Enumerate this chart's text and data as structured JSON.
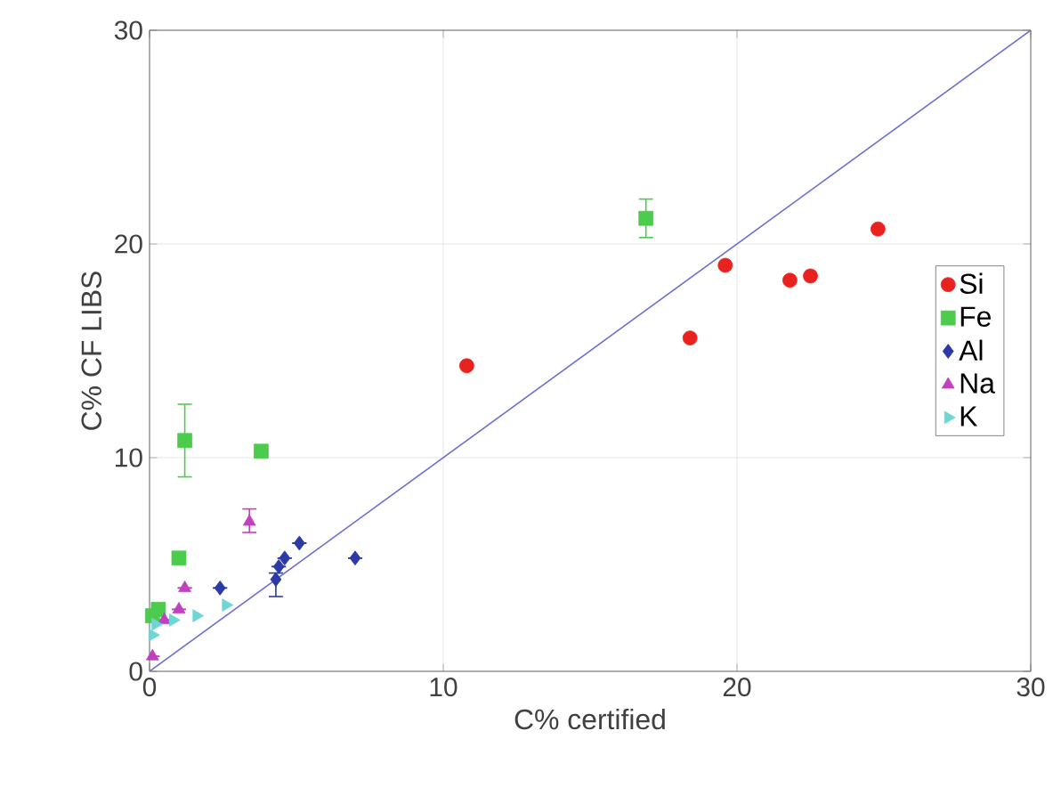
{
  "chart_data": {
    "type": "scatter",
    "xlabel": "C% certified",
    "ylabel": "C% CF LIBS",
    "xlim": [
      0,
      30
    ],
    "ylim": [
      0,
      30
    ],
    "xticks": [
      0,
      10,
      20,
      30
    ],
    "yticks": [
      0,
      10,
      20,
      30
    ],
    "grid": true,
    "legend": "right",
    "series": [
      {
        "name": "Si",
        "color": "#e8231f",
        "marker": "circle",
        "x": [
          10.8,
          18.4,
          19.6,
          21.8,
          22.5,
          24.8
        ],
        "values": [
          14.3,
          15.6,
          19.0,
          18.3,
          18.5,
          20.7
        ]
      },
      {
        "name": "Fe",
        "color": "#4ccc4c",
        "marker": "square",
        "x": [
          16.9,
          1.2,
          3.8,
          1.0,
          0.3,
          0.1
        ],
        "values": [
          21.2,
          10.8,
          10.3,
          5.3,
          2.9,
          2.6
        ],
        "errors": [
          [
            20.3,
            22.1
          ],
          [
            9.1,
            12.5
          ],
          null,
          null,
          null,
          null
        ]
      },
      {
        "name": "Al",
        "color": "#2b3aa6",
        "marker": "diamond",
        "x": [
          5.1,
          7.0,
          4.6,
          4.4,
          4.3,
          2.4
        ],
        "values": [
          6.0,
          5.3,
          5.3,
          4.9,
          4.3,
          3.9
        ],
        "errors": [
          null,
          null,
          null,
          null,
          [
            3.5,
            4.6
          ],
          null
        ]
      },
      {
        "name": "Na",
        "color": "#c040c0",
        "marker": "triangle",
        "x": [
          3.4,
          1.2,
          1.0,
          0.5,
          0.1
        ],
        "values": [
          7.0,
          3.9,
          2.9,
          2.4,
          0.7
        ],
        "errors": [
          [
            6.5,
            7.6
          ],
          null,
          null,
          null,
          null
        ]
      },
      {
        "name": "K",
        "color": "#6fd6d6",
        "marker": "triangle",
        "x": [
          2.6,
          1.6,
          0.8,
          0.2,
          0.1
        ],
        "values": [
          3.1,
          2.6,
          2.4,
          2.2,
          1.7
        ]
      },
      {
        "type": "line",
        "color": "#7070d0",
        "x": [
          0,
          30
        ],
        "values": [
          0,
          30
        ]
      }
    ]
  }
}
